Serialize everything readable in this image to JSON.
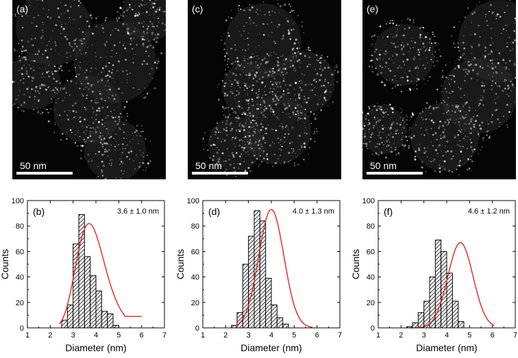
{
  "images": [
    {
      "label": "(a)",
      "scale_bar": "50 nm"
    },
    {
      "label": "(c)",
      "scale_bar": "50 nm"
    },
    {
      "label": "(e)",
      "scale_bar": "50 nm"
    }
  ],
  "colors": {
    "fit": "#e3231f",
    "bar_edge": "#000000",
    "hatch": "#000000"
  },
  "chart_data": [
    {
      "type": "bar",
      "panel": "(b)",
      "annotation": "3.6 ± 1.0 nm",
      "xlabel": "Diameter (nm)",
      "ylabel": "Counts",
      "xlim": [
        1,
        7
      ],
      "ylim": [
        0,
        100
      ],
      "xticks": [
        1,
        2,
        3,
        4,
        5,
        6,
        7
      ],
      "yticks": [
        0,
        20,
        40,
        60,
        80,
        100
      ],
      "bin_width": 0.25,
      "bins": [
        2.25,
        2.5,
        2.75,
        3.0,
        3.25,
        3.5,
        3.75,
        4.0,
        4.25,
        4.5,
        4.75,
        5.0,
        5.25,
        5.5,
        5.75,
        6.0
      ],
      "values": [
        0,
        6,
        18,
        66,
        89,
        56,
        41,
        29,
        13,
        11,
        2,
        0,
        0,
        0,
        0,
        0
      ],
      "fit": {
        "type": "lognormal",
        "peak_x": 3.7,
        "peak_y": 82,
        "range": [
          2.4,
          6.0
        ]
      }
    },
    {
      "type": "bar",
      "panel": "(d)",
      "annotation": "4.0 ± 1.3 nm",
      "xlabel": "Diameter (nm)",
      "ylabel": "Counts",
      "xlim": [
        1,
        7
      ],
      "ylim": [
        0,
        100
      ],
      "xticks": [
        1,
        2,
        3,
        4,
        5,
        6,
        7
      ],
      "yticks": [
        0,
        20,
        40,
        60,
        80,
        100
      ],
      "bin_width": 0.25,
      "bins": [
        2.25,
        2.5,
        2.75,
        3.0,
        3.25,
        3.5,
        3.75,
        4.0,
        4.25,
        4.5,
        4.75,
        5.0,
        5.25,
        5.5,
        5.75,
        6.0
      ],
      "values": [
        2,
        12,
        50,
        72,
        92,
        84,
        39,
        18,
        8,
        3,
        0,
        0,
        0,
        0,
        0,
        0
      ],
      "fit": {
        "type": "gaussian",
        "peak_x": 4.0,
        "peak_y": 93,
        "range": [
          2.4,
          5.8
        ]
      }
    },
    {
      "type": "bar",
      "panel": "(f)",
      "annotation": "4.6 ± 1.2 nm",
      "xlabel": "Diameter (nm)",
      "ylabel": "Counts",
      "xlim": [
        1,
        7
      ],
      "ylim": [
        0,
        100
      ],
      "xticks": [
        1,
        2,
        3,
        4,
        5,
        6,
        7
      ],
      "yticks": [
        0,
        20,
        40,
        60,
        80,
        100
      ],
      "bin_width": 0.25,
      "bins": [
        2.25,
        2.5,
        2.75,
        3.0,
        3.25,
        3.5,
        3.75,
        4.0,
        4.25,
        4.5,
        4.75,
        5.0,
        5.25,
        5.5,
        5.75,
        6.0
      ],
      "values": [
        1,
        4,
        12,
        21,
        40,
        69,
        60,
        43,
        21,
        5,
        0,
        0,
        0,
        0,
        0,
        0
      ],
      "fit": {
        "type": "gaussian",
        "peak_x": 4.6,
        "peak_y": 67,
        "range": [
          2.4,
          6.1
        ]
      }
    }
  ]
}
